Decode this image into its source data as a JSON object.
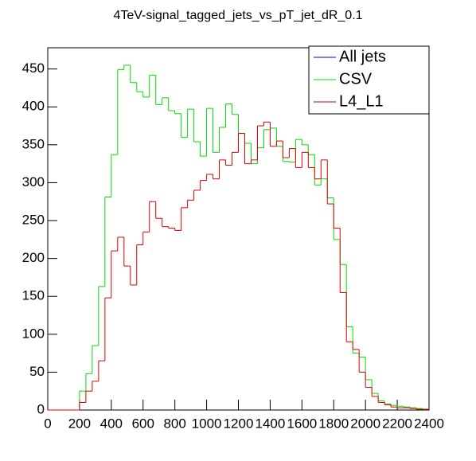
{
  "chart_data": {
    "type": "histogram",
    "title": "4TeV-signal_tagged_jets_vs_pT_jet_dR_0.1",
    "bins": [
      0,
      40,
      80,
      120,
      160,
      200,
      240,
      280,
      320,
      360,
      400,
      440,
      480,
      520,
      560,
      600,
      640,
      680,
      720,
      760,
      800,
      840,
      880,
      920,
      960,
      1000,
      1040,
      1080,
      1120,
      1160,
      1200,
      1240,
      1280,
      1320,
      1360,
      1400,
      1440,
      1480,
      1520,
      1560,
      1600,
      1640,
      1680,
      1720,
      1760,
      1800,
      1840,
      1880,
      1920,
      1960,
      2000,
      2040,
      2080,
      2120,
      2160,
      2200,
      2240,
      2280,
      2320,
      2360,
      2400
    ],
    "series": [
      {
        "name": "All jets",
        "color": "#0000cc",
        "values": [
          null,
          null,
          null,
          null,
          null,
          null,
          null,
          null,
          null,
          null,
          null,
          null,
          null,
          null,
          null,
          null,
          null,
          null,
          null,
          null,
          null,
          null,
          null,
          null,
          null,
          null,
          null,
          null,
          null,
          null,
          null,
          null,
          null,
          null,
          null,
          null,
          null,
          null,
          null,
          null,
          null,
          null,
          null,
          null,
          null,
          null,
          null,
          null,
          null,
          null,
          null,
          null,
          null,
          null,
          null,
          null,
          null,
          null,
          null,
          null
        ]
      },
      {
        "name": "CSV",
        "color": "#00dd00",
        "values": [
          0,
          0,
          0,
          0,
          0,
          25,
          48,
          85,
          163,
          281,
          337,
          449,
          455,
          432,
          420,
          413,
          442,
          403,
          412,
          395,
          391,
          360,
          397,
          354,
          335,
          398,
          340,
          373,
          404,
          390,
          365,
          352,
          325,
          346,
          370,
          372,
          348,
          328,
          327,
          357,
          350,
          337,
          297,
          305,
          280,
          225,
          192,
          110,
          75,
          70,
          40,
          22,
          12,
          8,
          6,
          5,
          4,
          3,
          2,
          1
        ]
      },
      {
        "name": "L4_L1",
        "color": "#dd0000",
        "values": [
          0,
          0,
          0,
          0,
          0,
          10,
          25,
          38,
          65,
          148,
          210,
          228,
          190,
          165,
          218,
          235,
          275,
          253,
          242,
          240,
          237,
          267,
          277,
          290,
          303,
          311,
          305,
          330,
          323,
          340,
          365,
          325,
          330,
          375,
          380,
          348,
          355,
          333,
          345,
          320,
          340,
          320,
          305,
          330,
          272,
          240,
          155,
          90,
          80,
          50,
          30,
          18,
          10,
          7,
          4,
          3,
          3,
          2,
          1,
          1
        ]
      }
    ],
    "xlim": [
      0,
      2400
    ],
    "xticks": [
      0,
      200,
      400,
      600,
      800,
      1000,
      1200,
      1400,
      1600,
      1800,
      2000,
      2200,
      2400
    ],
    "ylim": [
      0,
      478
    ],
    "yticks": [
      0,
      50,
      100,
      150,
      200,
      250,
      300,
      350,
      400,
      450
    ],
    "legend": "upper right"
  }
}
